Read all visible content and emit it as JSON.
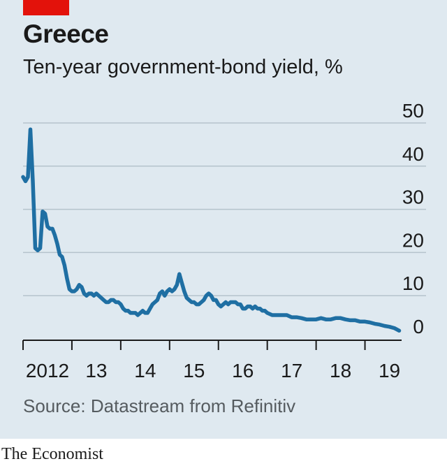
{
  "header": {
    "title": "Greece",
    "subtitle": "Ten-year government-bond yield, %"
  },
  "source": "Source: Datastream from Refinitiv",
  "footer": "The Economist",
  "colors": {
    "accent": "#e3120b",
    "line": "#1f6fa3",
    "background": "#dfe9f0",
    "grid": "#b5c3cc"
  },
  "chart_data": {
    "type": "line",
    "title": "Greece",
    "subtitle": "Ten-year government-bond yield, %",
    "xlabel": "",
    "ylabel": "",
    "ylim": [
      0,
      50
    ],
    "xlim": [
      2012,
      2019.75
    ],
    "y_ticks": [
      "0",
      "10",
      "20",
      "30",
      "40",
      "50"
    ],
    "x_tick_labels": [
      {
        "x": 2012.5,
        "label": "2012"
      },
      {
        "x": 2013.5,
        "label": "13"
      },
      {
        "x": 2014.5,
        "label": "14"
      },
      {
        "x": 2015.5,
        "label": "15"
      },
      {
        "x": 2016.5,
        "label": "16"
      },
      {
        "x": 2017.5,
        "label": "17"
      },
      {
        "x": 2018.5,
        "label": "18"
      },
      {
        "x": 2019.5,
        "label": "19"
      }
    ],
    "x_ticks": [
      2013,
      2014,
      2015,
      2016,
      2017,
      2018,
      2019
    ],
    "grid": true,
    "series": [
      {
        "name": "",
        "x": [
          2012.0,
          2012.05,
          2012.1,
          2012.15,
          2012.2,
          2012.25,
          2012.3,
          2012.35,
          2012.4,
          2012.45,
          2012.5,
          2012.55,
          2012.6,
          2012.65,
          2012.7,
          2012.75,
          2012.8,
          2012.85,
          2012.9,
          2012.95,
          2013.0,
          2013.05,
          2013.1,
          2013.15,
          2013.2,
          2013.25,
          2013.3,
          2013.35,
          2013.4,
          2013.45,
          2013.5,
          2013.55,
          2013.6,
          2013.65,
          2013.7,
          2013.75,
          2013.8,
          2013.85,
          2013.9,
          2013.95,
          2014.0,
          2014.05,
          2014.1,
          2014.15,
          2014.2,
          2014.25,
          2014.3,
          2014.35,
          2014.4,
          2014.45,
          2014.5,
          2014.55,
          2014.6,
          2014.65,
          2014.7,
          2014.75,
          2014.8,
          2014.85,
          2014.9,
          2014.95,
          2015.0,
          2015.05,
          2015.1,
          2015.15,
          2015.2,
          2015.25,
          2015.3,
          2015.35,
          2015.4,
          2015.45,
          2015.5,
          2015.55,
          2015.6,
          2015.65,
          2015.7,
          2015.75,
          2015.8,
          2015.85,
          2015.9,
          2015.95,
          2016.0,
          2016.05,
          2016.1,
          2016.15,
          2016.2,
          2016.25,
          2016.3,
          2016.35,
          2016.4,
          2016.45,
          2016.5,
          2016.55,
          2016.6,
          2016.65,
          2016.7,
          2016.75,
          2016.8,
          2016.85,
          2016.9,
          2016.95,
          2017.0,
          2017.1,
          2017.2,
          2017.3,
          2017.4,
          2017.5,
          2017.6,
          2017.7,
          2017.8,
          2017.9,
          2018.0,
          2018.1,
          2018.2,
          2018.3,
          2018.4,
          2018.5,
          2018.6,
          2018.7,
          2018.8,
          2018.9,
          2019.0,
          2019.1,
          2019.2,
          2019.3,
          2019.4,
          2019.5,
          2019.6,
          2019.7
        ],
        "values": [
          37.5,
          36.5,
          37.5,
          48.5,
          36.5,
          21.0,
          20.5,
          21.0,
          29.5,
          29.0,
          26.0,
          25.5,
          25.5,
          24.0,
          22.0,
          19.5,
          19.0,
          17.0,
          14.0,
          11.5,
          11.0,
          11.0,
          11.5,
          12.5,
          12.0,
          10.5,
          10.0,
          10.5,
          10.5,
          10.0,
          10.5,
          10.0,
          9.5,
          9.0,
          8.5,
          8.5,
          9.0,
          9.0,
          8.5,
          8.5,
          8.0,
          7.0,
          6.5,
          6.5,
          6.0,
          6.0,
          6.0,
          5.5,
          6.0,
          6.5,
          6.0,
          6.0,
          7.0,
          8.0,
          8.5,
          9.0,
          10.5,
          11.0,
          10.0,
          11.0,
          11.5,
          11.0,
          11.5,
          12.5,
          15.0,
          13.0,
          11.0,
          9.5,
          9.0,
          8.5,
          8.5,
          8.0,
          8.0,
          8.5,
          9.0,
          10.0,
          10.5,
          10.0,
          9.0,
          9.0,
          8.0,
          7.5,
          8.0,
          8.5,
          8.0,
          8.5,
          8.5,
          8.5,
          8.0,
          8.0,
          7.0,
          7.0,
          7.5,
          7.5,
          7.0,
          7.5,
          7.0,
          7.0,
          6.5,
          6.5,
          6.0,
          5.5,
          5.5,
          5.5,
          5.5,
          5.0,
          5.0,
          4.8,
          4.5,
          4.5,
          4.5,
          4.8,
          4.5,
          4.5,
          4.8,
          4.8,
          4.5,
          4.3,
          4.3,
          4.0,
          4.0,
          3.8,
          3.5,
          3.3,
          3.0,
          2.8,
          2.5,
          1.9
        ]
      }
    ]
  }
}
